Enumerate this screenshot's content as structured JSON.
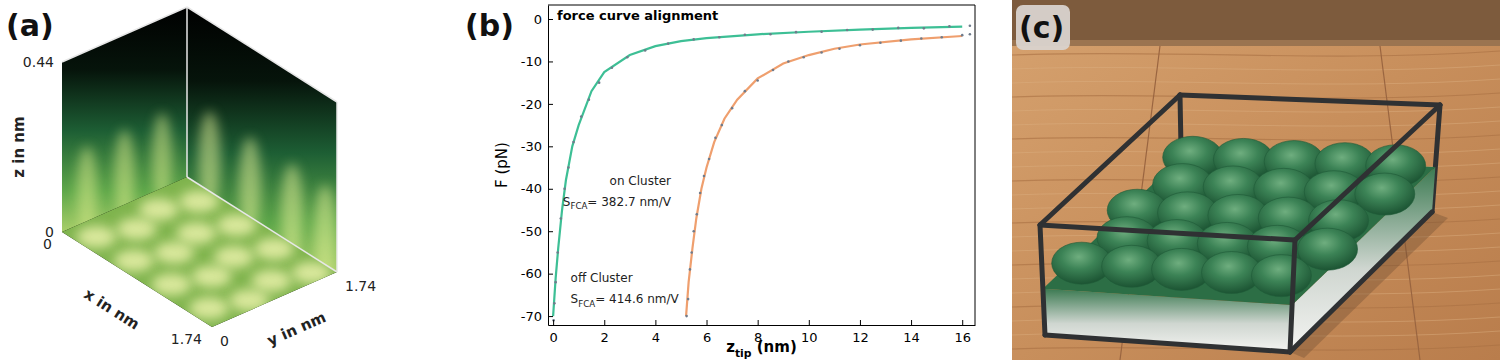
{
  "chart_data": [
    {
      "type": "volume",
      "panel": "(a)",
      "xlabel": "x in nm",
      "ylabel": "y in nm",
      "zlabel": "z in nm",
      "xlim": [
        0,
        1.74
      ],
      "ylim": [
        0,
        1.74
      ],
      "zlim": [
        0,
        0.44
      ],
      "xticks": [
        0,
        1.74
      ],
      "yticks": [
        0,
        1.74
      ],
      "zticks": [
        0,
        0.44
      ]
    },
    {
      "type": "line",
      "panel": "(b)",
      "title": "force curve alignment",
      "xlabel": {
        "main": "z",
        "sub": "tip",
        "text": " (nm)"
      },
      "ylabel": "F (pN)",
      "xlim": [
        -0.2,
        16.5
      ],
      "ylim": [
        -72.1,
        3.3
      ],
      "xticks": [
        0,
        2,
        4,
        6,
        8,
        10,
        12,
        14,
        16
      ],
      "yticks": [
        -70,
        -60,
        -50,
        -40,
        -30,
        -20,
        -10,
        0
      ],
      "series": [
        {
          "type": "line",
          "color": "#3dbf95",
          "line_style": "solid",
          "x": [
            0,
            0.1,
            0.2,
            0.35,
            0.5,
            0.75,
            1,
            1.5,
            2,
            3,
            4,
            5,
            6,
            8,
            10,
            12,
            14,
            16
          ],
          "values": [
            -70,
            -61,
            -54,
            -45,
            -38,
            -30,
            -25,
            -17,
            -12.5,
            -8.5,
            -6.4,
            -5.2,
            -4.5,
            -3.6,
            -3,
            -2.5,
            -2.1,
            -1.8
          ]
        },
        {
          "type": "line",
          "color": "#ef9f6e",
          "line_style": "solid",
          "x": [
            5.2,
            5.3,
            5.45,
            5.6,
            5.8,
            6,
            6.3,
            6.7,
            7.2,
            8,
            9,
            10,
            11,
            12,
            14,
            16
          ],
          "values": [
            -70,
            -62,
            -54,
            -47,
            -40,
            -35,
            -29,
            -23.5,
            -19,
            -14,
            -10.5,
            -8.5,
            -7,
            -6,
            -4.8,
            -4
          ]
        },
        {
          "type": "scatter",
          "color": "#6f7c8c",
          "marker": "dot",
          "x": [
            0.02,
            0.05,
            0.1,
            0.18,
            0.3,
            0.45,
            0.6,
            0.8,
            1.1,
            1.4,
            1.8,
            2.3,
            2.9,
            3.6,
            4.5,
            5.5,
            6.5,
            7.5,
            8.5,
            9.5,
            10.5,
            11.5,
            12.5,
            13.5,
            14.5,
            15.5,
            16.3
          ],
          "values": [
            -71,
            -67,
            -62,
            -55,
            -47,
            -40,
            -35,
            -29,
            -23,
            -19,
            -15,
            -11.5,
            -9,
            -7.4,
            -5.8,
            -4.8,
            -4.3,
            -3.7,
            -3.6,
            -3.1,
            -3,
            -2.6,
            -2.5,
            -2.1,
            -2.2,
            -1.7,
            -1.6
          ]
        },
        {
          "type": "scatter",
          "color": "#6f7c8c",
          "marker": "dot",
          "x": [
            5.22,
            5.28,
            5.35,
            5.42,
            5.5,
            5.62,
            5.75,
            5.9,
            6.1,
            6.35,
            6.6,
            7,
            7.5,
            8,
            8.6,
            9.2,
            9.8,
            10.5,
            11.2,
            12,
            12.8,
            13.6,
            14.4,
            15.2,
            16,
            16.3
          ],
          "values": [
            -70,
            -66,
            -59,
            -55,
            -50,
            -46,
            -41,
            -37,
            -33,
            -28,
            -25,
            -21,
            -17,
            -14.5,
            -12,
            -10,
            -9,
            -7.9,
            -7,
            -6.2,
            -5.6,
            -5.1,
            -4.6,
            -4.3,
            -3.8,
            -3.6
          ]
        }
      ],
      "annotations": [
        {
          "text": "on Cluster"
        },
        {
          "main": "S",
          "sub": "FCA",
          "text": "= 382.7 nm/V"
        },
        {
          "text": "off Cluster"
        },
        {
          "main": "S",
          "sub": "FCA",
          "text": "= 414.6 nm/V"
        }
      ]
    },
    {
      "type": "image",
      "panel": "(c)"
    }
  ]
}
